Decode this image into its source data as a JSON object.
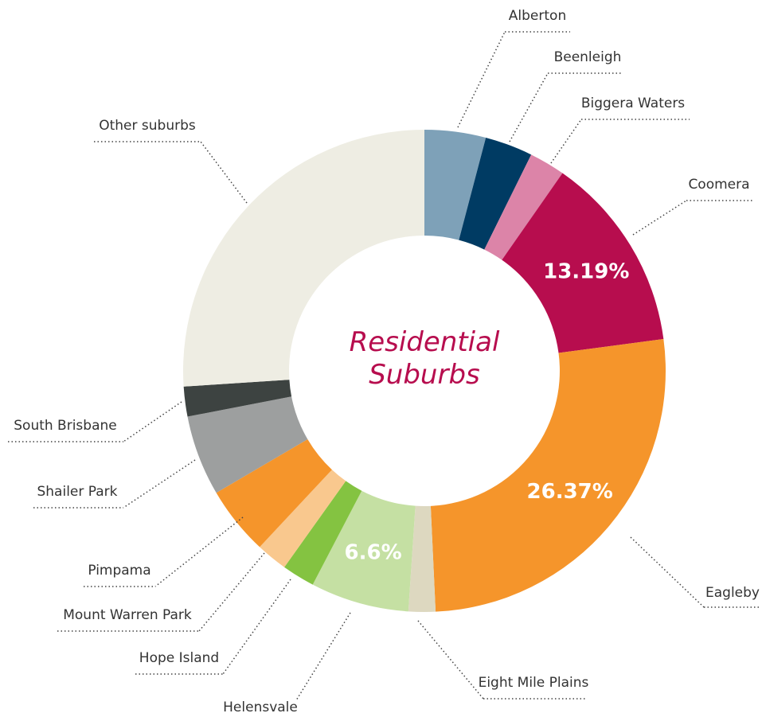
{
  "chart_data": {
    "type": "donut",
    "title": "Residential Suburbs",
    "categories": [
      "Alberton",
      "Beenleigh",
      "Biggera Waters",
      "Coomera",
      "Eagleby",
      "Eight Mile Plains",
      "Helensvale",
      "Hope Island",
      "Mount Warren Park",
      "Pimpama",
      "Shailer Park",
      "South Brisbane",
      "Other suburbs"
    ],
    "values": [
      4.1,
      3.2,
      2.4,
      13.19,
      26.37,
      1.8,
      6.6,
      2.2,
      2.1,
      4.6,
      5.4,
      2.0,
      26.04
    ],
    "value_labels": [
      null,
      null,
      null,
      "13.19%",
      "26.37%",
      null,
      "6.6%",
      null,
      null,
      null,
      null,
      null,
      null
    ],
    "colors": [
      "#7ea1b8",
      "#003b63",
      "#dc84a8",
      "#b70d4e",
      "#f5952b",
      "#ddd8c0",
      "#c5e0a3",
      "#84c341",
      "#f9c88e",
      "#f5952b",
      "#9d9f9f",
      "#3d4341",
      "#eeede3"
    ]
  }
}
